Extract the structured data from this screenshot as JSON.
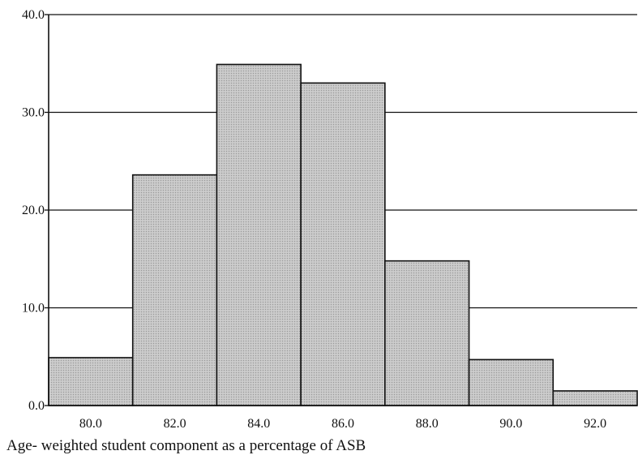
{
  "chart_data": {
    "type": "bar",
    "categories": [
      "80.0",
      "82.0",
      "84.0",
      "86.0",
      "88.0",
      "90.0",
      "92.0"
    ],
    "values": [
      4.9,
      23.6,
      34.9,
      33.0,
      14.8,
      4.7,
      1.5
    ],
    "xlabel": "Age- weighted student component as a percentage of ASB",
    "ylabel": "",
    "ylim": [
      0,
      40
    ],
    "yticks": [
      "0.0",
      "10.0",
      "20.0",
      "30.0",
      "40.0"
    ],
    "grid": true,
    "colors": {
      "bar_fill": "#c4c4c4",
      "bar_stroke": "#111111",
      "grid": "#111111"
    }
  }
}
